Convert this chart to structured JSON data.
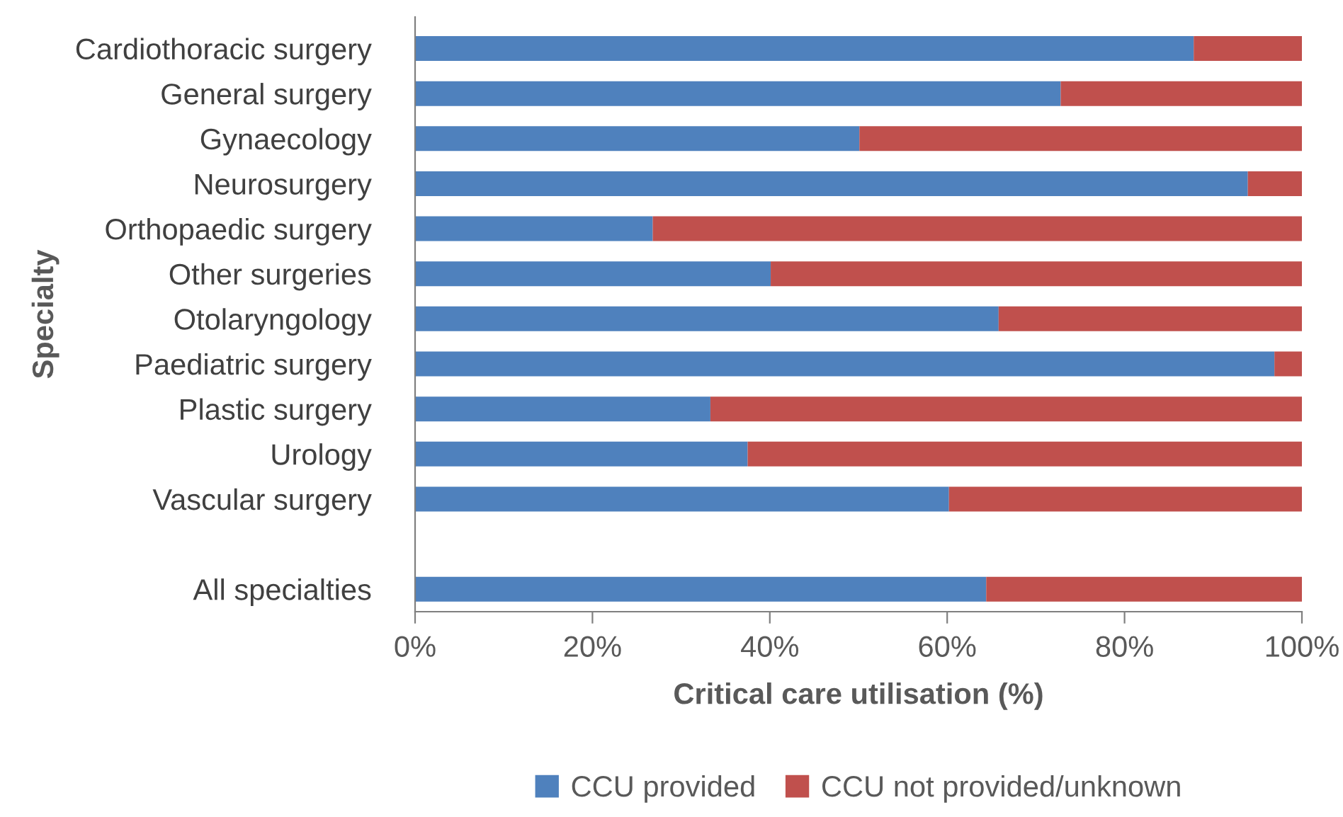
{
  "chart_data": {
    "type": "bar",
    "orientation": "horizontal",
    "stacked": true,
    "categories": [
      "Cardiothoracic surgery",
      "General surgery",
      "Gynaecology",
      "Neurosurgery",
      "Orthopaedic surgery",
      "Other surgeries",
      "Otolaryngology",
      "Paediatric surgery",
      "Plastic surgery",
      "Urology",
      "Vascular surgery",
      null,
      "All specialties"
    ],
    "series": [
      {
        "name": "CCU provided",
        "color": "#4f81bd",
        "values": [
          87.8,
          72.8,
          50.1,
          93.9,
          26.8,
          40.1,
          65.8,
          96.9,
          33.3,
          37.5,
          60.2,
          null,
          64.4
        ]
      },
      {
        "name": "CCU not provided/unknown",
        "color": "#c0504d",
        "values": [
          12.2,
          27.2,
          49.9,
          6.1,
          73.2,
          59.9,
          34.2,
          3.1,
          66.7,
          62.5,
          39.8,
          null,
          35.6
        ]
      }
    ],
    "xlim": [
      0,
      100
    ],
    "xticks": [
      {
        "value": 0,
        "label": "0%"
      },
      {
        "value": 20,
        "label": "20%"
      },
      {
        "value": 40,
        "label": "40%"
      },
      {
        "value": 60,
        "label": "60%"
      },
      {
        "value": 80,
        "label": "80%"
      },
      {
        "value": 100,
        "label": "100%"
      }
    ],
    "xlabel": "Critical care utilisation (%)",
    "ylabel": "Specialty",
    "legend": "bottom",
    "grid": false
  }
}
